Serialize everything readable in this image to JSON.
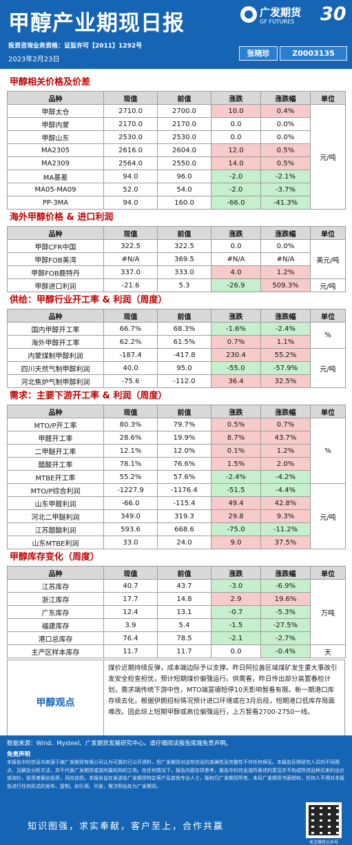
{
  "header": {
    "title": "甲醇产业期现日报",
    "logo_cn": "广发期货",
    "logo_en": "GF FUTURES",
    "anniversary": "30",
    "license": "投资咨询业务资格：证监许可【2011】1292号",
    "date": "2023年2月23日",
    "author": "张晓珍",
    "author_id": "Z0003135"
  },
  "columns": [
    "品种",
    "现值",
    "前值",
    "涨跌",
    "涨跌幅",
    "单位"
  ],
  "sections": [
    {
      "title": "甲醇相关价格及价差",
      "rows": [
        [
          "甲醇太仓",
          "2710.0",
          "2700.0",
          "10.0",
          "0.4%"
        ],
        [
          "甲醇内蒙",
          "2170.0",
          "2170.0",
          "0.0",
          "0.0%"
        ],
        [
          "甲醇山东",
          "2530.0",
          "2530.0",
          "0.0",
          "0.0%"
        ],
        [
          "MA2305",
          "2616.0",
          "2604.0",
          "12.0",
          "0.5%"
        ],
        [
          "MA2309",
          "2564.0",
          "2550.0",
          "14.0",
          "0.5%"
        ],
        [
          "MA基差",
          "94.0",
          "96.0",
          "-2.0",
          "-2.1%"
        ],
        [
          "MA05-MA09",
          "52.0",
          "54.0",
          "-2.0",
          "-3.7%"
        ],
        [
          "PP-3MA",
          "94.0",
          "160.0",
          "-66.0",
          "-41.3%"
        ]
      ],
      "units": [
        {
          "text": "元/吨",
          "start": 0,
          "span": 8
        }
      ]
    },
    {
      "title": "海外甲醇价格 & 进口利润",
      "rows": [
        [
          "甲醇CFR中国",
          "322.5",
          "322.5",
          "0.0",
          "0.0%"
        ],
        [
          "甲醇FOB美湾",
          "#N/A",
          "369.5",
          "#N/A",
          "#N/A"
        ],
        [
          "甲醇FOB鹿特丹",
          "337.0",
          "333.0",
          "4.0",
          "1.2%"
        ],
        [
          "甲醇进口利润",
          "-21.6",
          "5.3",
          "-26.9",
          "509.3%"
        ]
      ],
      "units": [
        {
          "text": "美元/吨",
          "start": 0,
          "span": 3
        },
        {
          "text": "元/吨",
          "start": 3,
          "span": 1
        }
      ]
    },
    {
      "title": "供给：甲醇行业开工率 & 利润（周度）",
      "rows": [
        [
          "国内甲醇开工率",
          "66.7%",
          "68.3%",
          "-1.6%",
          "-2.4%"
        ],
        [
          "海外甲醇开工率",
          "62.2%",
          "61.5%",
          "0.7%",
          "1.1%"
        ],
        [
          "内蒙煤制甲醇利润",
          "-187.4",
          "-417.8",
          "230.4",
          "55.2%"
        ],
        [
          "四川天然气制甲醇利润",
          "40.0",
          "95.0",
          "-55.0",
          "-57.9%"
        ],
        [
          "河北焦炉气制甲醇利润",
          "-75.6",
          "-112.0",
          "36.4",
          "32.5%"
        ]
      ],
      "units": [
        {
          "text": "%",
          "start": 0,
          "span": 2
        },
        {
          "text": "元/吨",
          "start": 2,
          "span": 3
        }
      ]
    },
    {
      "title": "需求：主要下游开工率 & 利润（周度）",
      "rows": [
        [
          "MTO/P开工率",
          "80.3%",
          "79.7%",
          "0.5%",
          "0.7%"
        ],
        [
          "甲醛开工率",
          "28.6%",
          "19.9%",
          "8.7%",
          "43.7%"
        ],
        [
          "二甲醚开工率",
          "12.1%",
          "12.0%",
          "0.1%",
          "1.2%"
        ],
        [
          "醋酸开工率",
          "78.1%",
          "76.6%",
          "1.5%",
          "2.0%"
        ],
        [
          "MTBE开工率",
          "55.2%",
          "57.6%",
          "-2.4%",
          "-4.2%"
        ],
        [
          "MTO/P综合利润",
          "-1227.9",
          "-1176.4",
          "-51.5",
          "-4.4%"
        ],
        [
          "山东甲醛利润",
          "-66.0",
          "-115.4",
          "49.4",
          "42.8%"
        ],
        [
          "河北二甲醚利润",
          "349.0",
          "319.3",
          "29.8",
          "9.3%"
        ],
        [
          "江苏醋酸利润",
          "593.6",
          "668.6",
          "-75.0",
          "-11.2%"
        ],
        [
          "山东MTBE利润",
          "33.0",
          "24.0",
          "9.0",
          "37.5%"
        ]
      ],
      "units": [
        {
          "text": "%",
          "start": 0,
          "span": 5
        },
        {
          "text": "元/吨",
          "start": 5,
          "span": 5
        }
      ]
    },
    {
      "title": "甲醇库存变化（周度）",
      "rows": [
        [
          "江苏库存",
          "40.7",
          "43.7",
          "-3.0",
          "-6.9%"
        ],
        [
          "浙江库存",
          "17.7",
          "14.8",
          "2.9",
          "19.6%"
        ],
        [
          "广东库存",
          "12.4",
          "13.1",
          "-0.7",
          "-5.3%"
        ],
        [
          "福建库存",
          "3.9",
          "5.4",
          "-1.5",
          "-27.5%"
        ],
        [
          "港口总库存",
          "76.4",
          "78.5",
          "-2.1",
          "-2.7%"
        ],
        [
          "主产区样本库存",
          "11.7",
          "11.7",
          "0.0",
          "-0.4%"
        ]
      ],
      "units": [
        {
          "text": "万吨",
          "start": 0,
          "span": 5
        },
        {
          "text": "天",
          "start": 5,
          "span": 1
        }
      ]
    }
  ],
  "view": {
    "label": "甲醇观点",
    "text": "煤价近期持续反弹，成本端边际予以支撑。昨日阿拉善区域煤矿发生重大事故引发安全检查担忧，预计短期煤价偏强运行。供需看，昨日传出部分装置春检计划，需求端传统下游中性，MTO端富德短停10天影响暂看有限。新一期港口库存续去化，根据伊朗招标情况预计进口环境或在3月后段，短期港口低库存局面难改。因此综上短期甲醇或高位偏强运行，上方暂看2700-2750一线。"
  },
  "footer": {
    "source": "数据来源：Wind、Mysteel、广发期货发展研究中心。请仔细阅读报告尾端免责声明。",
    "disclaimer_title": "免责声明",
    "disclaimer": "本报告中的信息均来源于被广发期货有限公司认为可靠的已公开资料，但广发期货对这些信息的准确性及完整性不作任何保证。本报告反映研究人员的不同观点、见解及分析方法，并不代表广发期货或其附属机构的立场。在任何情况下，报告内容仅供参考，报告中的信息或所表述的意见并不构成所述品种买卖的出价或询价，投资者据此投资，风险自担。本报告旨在发送给广发期货特定客户及其他专业人士，版权归广发期货所有，未经广发期货书面授权，任何人不得对本报告进行任何形式的发布、复制。如引用、刊发，需注明出处为广发期货。",
    "slogan": "知识图强，求实奉献，客户至上，合作共赢",
    "qr_caption": "关注微信公众号"
  },
  "colors": {
    "brand_blue": "#1565b4",
    "positive": "#f8cbcb",
    "negative": "#c6efce",
    "section_title": "#c00000"
  }
}
